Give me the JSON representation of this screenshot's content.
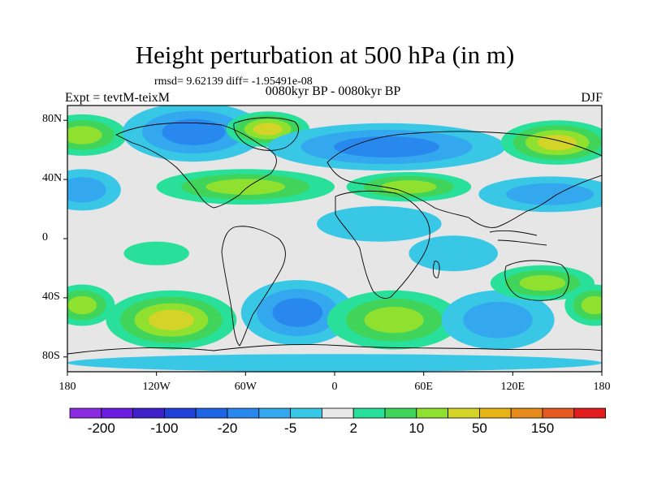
{
  "figure": {
    "title": "Height perturbation at 500 hPa (in m)",
    "stats": "rmsd= 9.62139 diff= -1.95491e-08",
    "expt": "Expt = tevtM-teixM",
    "period": "0080kyr BP - 0080kyr BP",
    "season": "DJF"
  },
  "map": {
    "projection": "cylindrical-equidistant",
    "lon_range": [
      -180,
      180
    ],
    "lat_range": [
      -90,
      90
    ],
    "lon_ticks": [
      {
        "value": -180,
        "label": "180"
      },
      {
        "value": -120,
        "label": "120W"
      },
      {
        "value": -60,
        "label": "60W"
      },
      {
        "value": 0,
        "label": "0"
      },
      {
        "value": 60,
        "label": "60E"
      },
      {
        "value": 120,
        "label": "120E"
      },
      {
        "value": 180,
        "label": "180"
      }
    ],
    "lat_ticks": [
      {
        "value": 80,
        "label": "80N"
      },
      {
        "value": 40,
        "label": "40N"
      },
      {
        "value": 0,
        "label": "0"
      },
      {
        "value": -40,
        "label": "40S"
      },
      {
        "value": -80,
        "label": "80S"
      }
    ],
    "fields": [
      {
        "lon": -170,
        "lat": 70,
        "rx": 30,
        "ry": 14,
        "level": 3
      },
      {
        "lon": -95,
        "lat": 72,
        "rx": 48,
        "ry": 20,
        "level": -3
      },
      {
        "lon": -45,
        "lat": 74,
        "rx": 28,
        "ry": 12,
        "level": 4
      },
      {
        "lon": 35,
        "lat": 62,
        "rx": 80,
        "ry": 16,
        "level": -3
      },
      {
        "lon": 150,
        "lat": 65,
        "rx": 38,
        "ry": 15,
        "level": 4
      },
      {
        "lon": -170,
        "lat": 33,
        "rx": 26,
        "ry": 14,
        "level": -2
      },
      {
        "lon": 145,
        "lat": 30,
        "rx": 48,
        "ry": 12,
        "level": -2
      },
      {
        "lon": -60,
        "lat": 35,
        "rx": 60,
        "ry": 12,
        "level": 3
      },
      {
        "lon": 50,
        "lat": 35,
        "rx": 42,
        "ry": 10,
        "level": 3
      },
      {
        "lon": 30,
        "lat": 10,
        "rx": 42,
        "ry": 12,
        "level": -1
      },
      {
        "lon": 80,
        "lat": -10,
        "rx": 30,
        "ry": 12,
        "level": -1
      },
      {
        "lon": -120,
        "lat": -10,
        "rx": 22,
        "ry": 8,
        "level": 1
      },
      {
        "lon": -170,
        "lat": -45,
        "rx": 22,
        "ry": 14,
        "level": 3
      },
      {
        "lon": -110,
        "lat": -55,
        "rx": 44,
        "ry": 20,
        "level": 4
      },
      {
        "lon": -25,
        "lat": -50,
        "rx": 38,
        "ry": 22,
        "level": -3
      },
      {
        "lon": 40,
        "lat": -55,
        "rx": 45,
        "ry": 20,
        "level": 3
      },
      {
        "lon": 110,
        "lat": -55,
        "rx": 38,
        "ry": 20,
        "level": -2
      },
      {
        "lon": 140,
        "lat": -30,
        "rx": 35,
        "ry": 12,
        "level": 3
      },
      {
        "lon": 175,
        "lat": -45,
        "rx": 20,
        "ry": 14,
        "level": 3
      },
      {
        "lon": 0,
        "lat": -84,
        "rx": 180,
        "ry": 6,
        "level": -1
      }
    ]
  },
  "legend": {
    "colors": [
      "#8a2be2",
      "#6a1de0",
      "#4020c8",
      "#2040d8",
      "#1e64e6",
      "#2888ee",
      "#34a8ee",
      "#38c8e6",
      "#e8e8e8",
      "#28e09a",
      "#40d45a",
      "#90e030",
      "#d4d428",
      "#e6b414",
      "#e68a1c",
      "#e45a20",
      "#e21c1c"
    ],
    "tick_labels": [
      "-200",
      "-100",
      "-20",
      "-5",
      "2",
      "10",
      "50",
      "150"
    ]
  }
}
